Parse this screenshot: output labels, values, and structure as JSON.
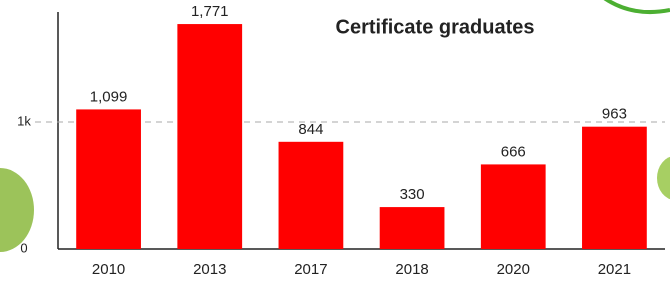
{
  "chart_data": {
    "type": "bar",
    "title": "Certificate graduates",
    "categories": [
      "2010",
      "2013",
      "2017",
      "2018",
      "2020",
      "2021"
    ],
    "values": [
      1099,
      1771,
      844,
      330,
      666,
      963
    ],
    "value_labels": [
      "1,099",
      "1,771",
      "844",
      "330",
      "666",
      "963"
    ],
    "color": "#ff0000",
    "ylim": [
      0,
      1866
    ],
    "yticks": [
      0,
      {
        "value": 1000,
        "label": "1k"
      }
    ],
    "grid": true
  }
}
